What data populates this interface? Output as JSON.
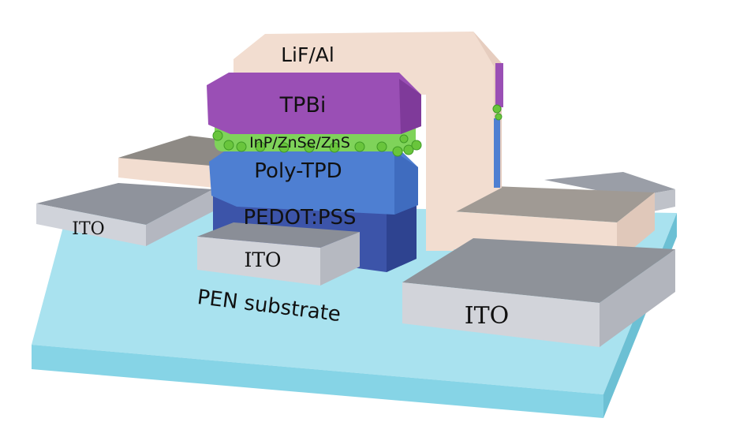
{
  "diagram": {
    "layers": {
      "cathode": "LiF/Al",
      "etl": "TPBi",
      "qd": "InP/ZnSe/ZnS",
      "htl": "Poly-TPD",
      "hil": "PEDOT:PSS",
      "substrate": "PEN substrate"
    },
    "electrodes": {
      "left": "ITO",
      "front": "ITO",
      "right": "ITO"
    },
    "colors": {
      "substrate": "#86d4e6",
      "ito": "#a3a6b0",
      "ito_front": "#d2d4da",
      "cathode": "#f2ddd0",
      "tpbi": "#9a4fb5",
      "qd_dots": "#69c53c",
      "poly_tpd": "#4e7fd2",
      "pedot": "#3c54a9"
    }
  }
}
